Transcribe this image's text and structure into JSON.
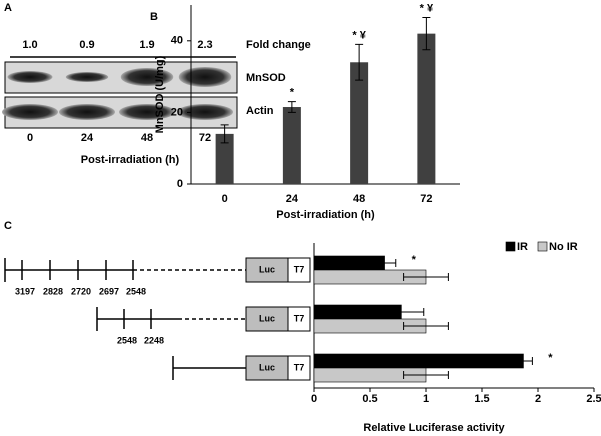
{
  "blot": {
    "panel_label": "A",
    "fold_change_label": "Fold change",
    "fold_changes": [
      "1.0",
      "0.9",
      "1.9",
      "2.3"
    ],
    "rows": [
      "MnSOD",
      "Actin"
    ],
    "lanes": [
      "0",
      "24",
      "48",
      "72"
    ],
    "xlabel": "Post-irradiation (h)"
  },
  "chart_data": [
    {
      "type": "bar",
      "panel_label": "B",
      "categories": [
        "0",
        "24",
        "48",
        "72"
      ],
      "values": [
        14,
        21.5,
        34,
        42
      ],
      "errors": [
        2.5,
        1.5,
        5,
        4.5
      ],
      "color": "#404040",
      "ylim": [
        0,
        50
      ],
      "yticks": [
        0,
        20,
        40
      ],
      "ylabel": "MnSOD (U/mg)",
      "xlabel": "Post-irradiation (h)",
      "annotations": [
        {
          "index": 1,
          "text": "*"
        },
        {
          "index": 2,
          "text": "* ¥"
        },
        {
          "index": 3,
          "text": "* ¥"
        }
      ]
    },
    {
      "type": "barh",
      "panel_label": "C",
      "categories": [
        null,
        null,
        null
      ],
      "series": [
        {
          "name": "IR",
          "color": "#000000",
          "values": [
            0.63,
            0.78,
            1.87
          ],
          "errors": [
            0.1,
            0.2,
            0.08
          ]
        },
        {
          "name": "No IR",
          "color": "#c8c8c8",
          "values": [
            1,
            1,
            1
          ],
          "errors": [
            0.2,
            0.2,
            0.2
          ]
        }
      ],
      "xlim": [
        0,
        2.5
      ],
      "xticks": [
        0,
        0.5,
        1,
        1.5,
        2,
        2.5
      ],
      "xlabel": "Relative Luciferase activity",
      "legend": "top-right",
      "annotations": [
        {
          "series": 0,
          "index": 0,
          "text": "*"
        },
        {
          "series": 0,
          "index": 2,
          "text": "*"
        }
      ]
    }
  ],
  "constructs": {
    "reporter": "Luc",
    "tag": "T7",
    "items": [
      {
        "sites": [
          "3197",
          "2828",
          "2720",
          "2697",
          "2548"
        ]
      },
      {
        "sites": [
          "2548",
          "2248"
        ]
      },
      {
        "sites": []
      }
    ]
  }
}
